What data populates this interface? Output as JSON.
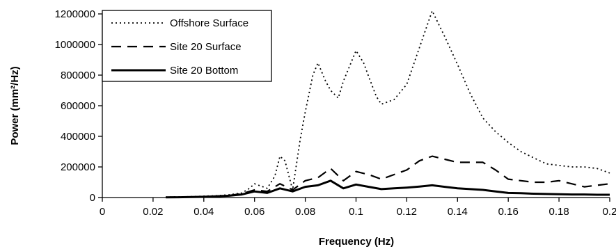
{
  "chart_data": {
    "type": "line",
    "title": "",
    "xlabel": "Frequency (Hz)",
    "ylabel": "Power (mm²/Hz)",
    "xlim": [
      0,
      0.2
    ],
    "ylim": [
      0,
      1200000
    ],
    "x_ticks": [
      "0",
      "0.02",
      "0.04",
      "0.06",
      "0.08",
      "0.1",
      "0.12",
      "0.14",
      "0.16",
      "0.18",
      "0.2"
    ],
    "y_ticks": [
      "0",
      "200000",
      "400000",
      "600000",
      "800000",
      "1000000",
      "1200000"
    ],
    "grid": false,
    "legend_position": "top-left",
    "series": [
      {
        "name": "Offshore Surface",
        "line_style": "dotted",
        "color": "#000000",
        "x": [
          0.025,
          0.03,
          0.035,
          0.04,
          0.045,
          0.05,
          0.055,
          0.058,
          0.06,
          0.065,
          0.068,
          0.07,
          0.072,
          0.075,
          0.078,
          0.08,
          0.083,
          0.085,
          0.088,
          0.09,
          0.093,
          0.095,
          0.098,
          0.1,
          0.103,
          0.105,
          0.108,
          0.11,
          0.115,
          0.12,
          0.125,
          0.13,
          0.135,
          0.14,
          0.145,
          0.15,
          0.155,
          0.16,
          0.165,
          0.17,
          0.175,
          0.18,
          0.185,
          0.19,
          0.195,
          0.2
        ],
        "y": [
          3000,
          4000,
          6000,
          9000,
          12000,
          18000,
          30000,
          60000,
          90000,
          60000,
          140000,
          270000,
          240000,
          50000,
          380000,
          560000,
          800000,
          880000,
          760000,
          700000,
          650000,
          760000,
          880000,
          960000,
          880000,
          790000,
          660000,
          610000,
          640000,
          740000,
          980000,
          1220000,
          1050000,
          870000,
          680000,
          520000,
          430000,
          360000,
          300000,
          260000,
          220000,
          210000,
          200000,
          200000,
          190000,
          160000
        ]
      },
      {
        "name": "Site 20 Surface",
        "line_style": "dashed",
        "color": "#000000",
        "x": [
          0.025,
          0.03,
          0.035,
          0.04,
          0.045,
          0.05,
          0.055,
          0.06,
          0.065,
          0.07,
          0.075,
          0.08,
          0.085,
          0.09,
          0.095,
          0.1,
          0.105,
          0.11,
          0.115,
          0.12,
          0.125,
          0.13,
          0.135,
          0.14,
          0.145,
          0.15,
          0.155,
          0.16,
          0.165,
          0.17,
          0.175,
          0.18,
          0.185,
          0.19,
          0.195,
          0.2
        ],
        "y": [
          2000,
          3000,
          4000,
          6000,
          9000,
          14000,
          25000,
          50000,
          40000,
          90000,
          50000,
          110000,
          130000,
          190000,
          110000,
          170000,
          150000,
          120000,
          150000,
          180000,
          240000,
          270000,
          250000,
          230000,
          230000,
          230000,
          180000,
          120000,
          110000,
          100000,
          100000,
          110000,
          90000,
          70000,
          80000,
          90000
        ]
      },
      {
        "name": "Site 20 Bottom",
        "line_style": "solid",
        "color": "#000000",
        "x": [
          0.025,
          0.03,
          0.035,
          0.04,
          0.045,
          0.05,
          0.055,
          0.06,
          0.065,
          0.07,
          0.075,
          0.08,
          0.085,
          0.09,
          0.095,
          0.1,
          0.105,
          0.11,
          0.115,
          0.12,
          0.125,
          0.13,
          0.135,
          0.14,
          0.145,
          0.15,
          0.155,
          0.16,
          0.165,
          0.17,
          0.175,
          0.18,
          0.185,
          0.19,
          0.195,
          0.2
        ],
        "y": [
          1000,
          2000,
          3000,
          5000,
          8000,
          12000,
          20000,
          40000,
          30000,
          60000,
          40000,
          70000,
          80000,
          110000,
          60000,
          85000,
          70000,
          55000,
          60000,
          65000,
          72000,
          80000,
          70000,
          60000,
          55000,
          50000,
          40000,
          30000,
          28000,
          25000,
          23000,
          22000,
          20000,
          20000,
          18000,
          18000
        ]
      }
    ]
  }
}
